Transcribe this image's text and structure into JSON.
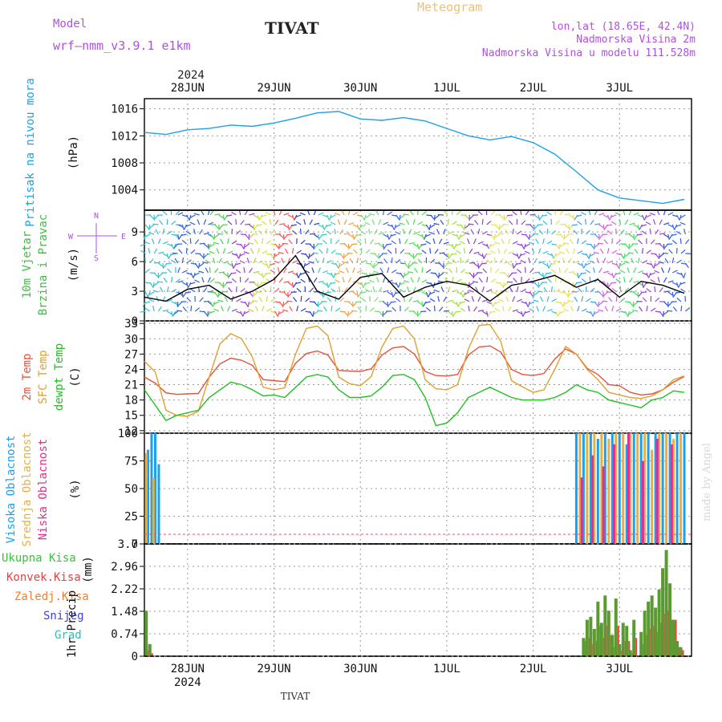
{
  "header": {
    "model_label": "Model",
    "model_name": "wrf—nmm_v3.9.1  e1km",
    "station": "TIVAT",
    "product": "Meteogram",
    "lonlat": "lon,lat (18.65E, 42.4N)",
    "elev": "Nadmorska Visina 2m",
    "elev_model": "Nadmorska Visina u modelu 111.528m",
    "credit": "made by Angel",
    "footer_station": "TIVAT"
  },
  "colors": {
    "pressure": "#1fa0e8",
    "temp2m": "#e8503c",
    "sfc": "#e0a030",
    "dewpt": "#20c020",
    "high": "#1aa0f0",
    "mid": "#e8b040",
    "low": "#e03090",
    "total": "#3cc03c",
    "conv": "#e84040",
    "frozen": "#f08030",
    "snow": "#4040e0",
    "hail": "#20c0c0",
    "purple": "#b050e0",
    "gold": "#f0c070"
  },
  "chart_data": [
    {
      "type": "line",
      "id": "pressure",
      "ylabel": [
        "Pritisak na nivou mora",
        "(hPa)"
      ],
      "yticks": [
        "1016",
        "1012",
        "1008",
        "1004"
      ],
      "ylim": [
        1001,
        1017.5
      ],
      "top_year": "2024",
      "xticks": [
        "28JUN",
        "29JUN",
        "30JUN",
        "1JUL",
        "2JUL",
        "3JUL"
      ],
      "x_hours": [
        0,
        6,
        12,
        18,
        24,
        30,
        36,
        42,
        48,
        54,
        60,
        66,
        72,
        78,
        84,
        90,
        96,
        102,
        108,
        114,
        120,
        126,
        132,
        138,
        144,
        150
      ],
      "series": [
        {
          "values": [
            1012.5,
            1012.2,
            1012.9,
            1013.1,
            1013.6,
            1013.4,
            1013.9,
            1014.6,
            1015.4,
            1015.6,
            1014.5,
            1014.3,
            1014.7,
            1014.2,
            1013.1,
            1012.0,
            1011.4,
            1011.9,
            1011.0,
            1009.3,
            1006.7,
            1004.0,
            1002.8,
            1002.4,
            1002.0,
            1002.6
          ]
        }
      ]
    },
    {
      "type": "line",
      "id": "wind",
      "ylabel": [
        "10m Vjetar",
        "Brzina i Pravac",
        "(m/s)"
      ],
      "compass": {
        "n": "N",
        "s": "S",
        "e": "E",
        "w": "W"
      },
      "yticks": [
        "9",
        "6",
        "3",
        "0"
      ],
      "ylim": [
        0,
        11.2
      ],
      "x_hours": [
        0,
        6,
        12,
        18,
        24,
        30,
        36,
        42,
        48,
        54,
        60,
        66,
        72,
        78,
        84,
        90,
        96,
        102,
        108,
        114,
        120,
        126,
        132,
        138,
        144,
        150
      ],
      "series": [
        {
          "name": "speed",
          "values": [
            2.4,
            2.0,
            3.2,
            3.6,
            2.2,
            3.0,
            4.2,
            6.6,
            3.0,
            2.2,
            4.4,
            4.8,
            2.4,
            3.4,
            4.0,
            3.6,
            2.0,
            3.6,
            4.0,
            4.6,
            3.4,
            4.2,
            2.4,
            4.0,
            3.6,
            2.8
          ]
        }
      ],
      "wind_bands": [
        {
          "from": 0,
          "to": 9,
          "color": "#30c0d0"
        },
        {
          "from": 9,
          "to": 18,
          "color": "#3060e0"
        },
        {
          "from": 18,
          "to": 24,
          "color": "#50d050"
        },
        {
          "from": 24,
          "to": 30,
          "color": "#a040e0"
        },
        {
          "from": 30,
          "to": 36,
          "color": "#d0e040"
        },
        {
          "from": 36,
          "to": 42,
          "color": "#ff5050"
        },
        {
          "from": 42,
          "to": 48,
          "color": "#3040d0"
        },
        {
          "from": 48,
          "to": 54,
          "color": "#30d0c0"
        },
        {
          "from": 54,
          "to": 60,
          "color": "#f0a040"
        },
        {
          "from": 60,
          "to": 66,
          "color": "#70e070"
        },
        {
          "from": 66,
          "to": 72,
          "color": "#4060f0"
        },
        {
          "from": 72,
          "to": 78,
          "color": "#50e050"
        },
        {
          "from": 78,
          "to": 84,
          "color": "#3050e0"
        },
        {
          "from": 84,
          "to": 90,
          "color": "#a0e040"
        },
        {
          "from": 90,
          "to": 96,
          "color": "#9040d0"
        },
        {
          "from": 96,
          "to": 102,
          "color": "#e0e060"
        },
        {
          "from": 102,
          "to": 108,
          "color": "#9040e0"
        },
        {
          "from": 108,
          "to": 114,
          "color": "#30c0e0"
        },
        {
          "from": 114,
          "to": 120,
          "color": "#e8e050"
        },
        {
          "from": 120,
          "to": 126,
          "color": "#40a0f0"
        },
        {
          "from": 126,
          "to": 132,
          "color": "#d060e0"
        },
        {
          "from": 132,
          "to": 138,
          "color": "#40e060"
        },
        {
          "from": 138,
          "to": 144,
          "color": "#a040e0"
        },
        {
          "from": 144,
          "to": 150,
          "color": "#3060f0"
        }
      ]
    },
    {
      "type": "line",
      "id": "temp",
      "ylabel": [
        "2m Temp",
        "SFC Temp",
        "dewpt Temp",
        "(C)"
      ],
      "yticks": [
        "33",
        "30",
        "27",
        "24",
        "21",
        "18",
        "15",
        "12"
      ],
      "ylim": [
        11.5,
        33.5
      ],
      "x_hours": [
        0,
        3,
        6,
        9,
        12,
        15,
        18,
        21,
        24,
        27,
        30,
        33,
        36,
        39,
        42,
        45,
        48,
        51,
        54,
        57,
        60,
        63,
        66,
        69,
        72,
        75,
        78,
        81,
        84,
        87,
        90,
        93,
        96,
        99,
        102,
        105,
        108,
        111,
        114,
        117,
        120,
        123,
        126,
        129,
        132,
        135,
        138,
        141,
        144,
        147,
        150
      ],
      "series": [
        {
          "name": "2m Temp",
          "values": [
            22.5,
            21.3,
            19.4,
            19.1,
            19.2,
            19.3,
            22.5,
            25.1,
            26.2,
            25.8,
            24.8,
            22.0,
            21.8,
            21.6,
            25.2,
            27.1,
            27.6,
            26.8,
            23.8,
            23.7,
            23.6,
            24.1,
            26.8,
            28.2,
            28.5,
            27.0,
            23.6,
            22.8,
            22.7,
            23.0,
            26.8,
            28.4,
            28.6,
            27.4,
            24.0,
            23.0,
            22.8,
            23.2,
            26.0,
            28.0,
            27.0,
            24.2,
            23.0,
            21.0,
            20.8,
            19.5,
            19.0,
            19.2,
            20.0,
            21.5,
            22.6
          ]
        },
        {
          "name": "SFC Temp",
          "values": [
            25.6,
            23.5,
            16.0,
            15.0,
            14.8,
            15.8,
            22.5,
            29.0,
            31.0,
            30.0,
            26.4,
            20.5,
            20.0,
            20.4,
            27.0,
            32.0,
            32.5,
            30.6,
            22.5,
            21.2,
            20.8,
            22.6,
            28.4,
            32.0,
            32.5,
            30.0,
            22.0,
            20.2,
            20.0,
            21.0,
            28.0,
            32.6,
            32.8,
            29.5,
            21.8,
            20.6,
            19.5,
            20.0,
            24.0,
            28.5,
            27.0,
            24.0,
            22.0,
            19.5,
            19.0,
            18.5,
            18.3,
            18.8,
            20.0,
            22.0,
            22.7
          ]
        },
        {
          "name": "dewpt Temp",
          "values": [
            20.0,
            17.0,
            14.0,
            15.0,
            15.5,
            16.0,
            18.5,
            20.0,
            21.5,
            21.0,
            20.0,
            18.8,
            19.0,
            18.5,
            20.5,
            22.5,
            23.0,
            22.5,
            20.0,
            18.5,
            18.5,
            18.8,
            20.5,
            22.8,
            23.0,
            22.0,
            18.5,
            13.0,
            13.5,
            15.5,
            18.5,
            19.5,
            20.5,
            19.5,
            18.5,
            18.0,
            18.0,
            18.0,
            18.5,
            19.5,
            21.0,
            20.0,
            19.5,
            18.0,
            17.5,
            17.0,
            16.5,
            18.0,
            18.5,
            19.8,
            19.5
          ]
        }
      ]
    },
    {
      "type": "bar",
      "id": "cloud",
      "ylabel": [
        "Visoka Oblacnost",
        "Srednja Oblacnost",
        "Niska Oblacnost",
        "(%)"
      ],
      "yticks": [
        "100",
        "75",
        "50",
        "25",
        "0"
      ],
      "ylim": [
        0,
        100
      ],
      "series": [
        {
          "name": "Visoka Oblacnost",
          "x": [
            1,
            2,
            3,
            4,
            120,
            122,
            124,
            126,
            128,
            130,
            132,
            134,
            136,
            138,
            140,
            142,
            144,
            146,
            148,
            150
          ],
          "values": [
            85,
            100,
            100,
            72,
            100,
            100,
            100,
            95,
            100,
            100,
            100,
            90,
            100,
            100,
            100,
            100,
            100,
            100,
            100,
            100
          ]
        },
        {
          "name": "Srednja Oblacnost",
          "x": [
            0.5,
            2.5,
            121,
            123,
            125,
            127,
            129,
            131,
            133,
            135,
            137,
            139,
            141,
            143,
            145,
            147,
            149
          ],
          "values": [
            82,
            60,
            100,
            100,
            100,
            100,
            95,
            100,
            100,
            100,
            100,
            100,
            85,
            100,
            100,
            95,
            100
          ]
        },
        {
          "name": "Niska Oblacnost",
          "x": [
            121.5,
            124.5,
            127.5,
            130.5,
            134.5,
            138.5,
            142.5,
            146.5
          ],
          "values": [
            60,
            80,
            70,
            90,
            100,
            75,
            95,
            90
          ]
        }
      ]
    },
    {
      "type": "bar",
      "id": "precip",
      "ylabel": [
        "1hr Precip",
        "(mm)"
      ],
      "legend": [
        "Ukupna  Kisa",
        "Konvek.Kisa",
        "Zaledj.Kisa",
        "Snijeg",
        "Grad"
      ],
      "yticks": [
        "3.7",
        "2.96",
        "2.22",
        "1.48",
        "0.74",
        "0"
      ],
      "ylim": [
        0,
        3.7
      ],
      "bottom_year": "2024",
      "x": [
        0.5,
        1.5,
        2.5,
        3.5,
        122,
        123,
        124,
        125,
        126,
        127,
        128,
        129,
        130,
        131,
        132,
        133,
        134,
        135,
        136,
        137,
        138,
        139,
        140,
        141,
        142,
        143,
        144,
        145,
        146,
        147,
        148,
        149
      ],
      "series": [
        {
          "name": "Ukupna Kisa",
          "values": [
            1.5,
            0.4,
            0,
            0,
            0.6,
            1.2,
            1.3,
            0.9,
            1.8,
            1.1,
            2.0,
            1.5,
            0.7,
            1.9,
            0.4,
            1.1,
            1.0,
            0.2,
            1.2,
            0.0,
            0.8,
            1.5,
            1.8,
            2.0,
            1.6,
            2.2,
            2.9,
            3.5,
            2.4,
            1.2,
            0.5,
            0.3
          ]
        },
        {
          "name": "Konvek.Kisa",
          "values": [
            0.2,
            0.1,
            0,
            0,
            0.5,
            0.6,
            0.4,
            0.5,
            1.0,
            0.6,
            1.0,
            0.7,
            0.3,
            1.0,
            0.2,
            0.5,
            0.5,
            0.1,
            0.6,
            0.0,
            0.4,
            0.7,
            0.9,
            1.0,
            0.8,
            1.1,
            1.4,
            1.5,
            1.2,
            1.2,
            0.3,
            0.2
          ]
        }
      ]
    }
  ],
  "x_axis": {
    "hours_total": 152,
    "day_starts_hour": [
      12,
      36,
      60,
      84,
      108,
      132
    ]
  }
}
